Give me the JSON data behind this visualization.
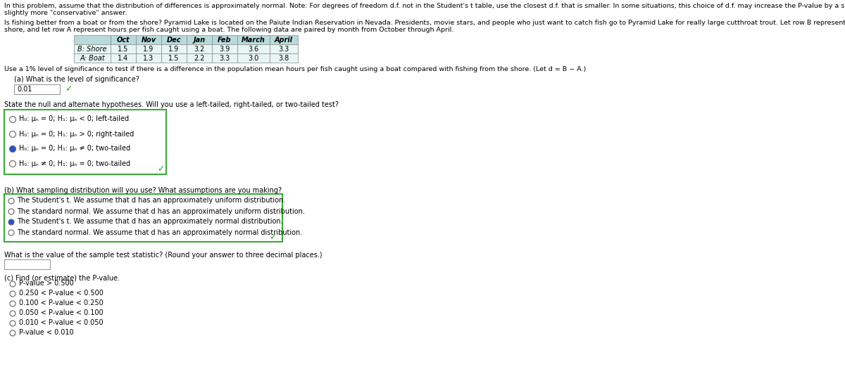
{
  "header_line1": "In this problem, assume that the distribution of differences is approximately normal. Note: For degrees of freedom d.f. not in the Student's t table, use the closest d.f. that is smaller. In some situations, this choice of d.f. may increase the P-value by a small amount and therefore produce a",
  "header_line2": "slightly more \"conservative\" answer.",
  "problem_line1": "Is fishing better from a boat or from the shore? Pyramid Lake is located on the Paiute Indian Reservation in Nevada. Presidents, movie stars, and people who just want to catch fish go to Pyramid Lake for really large cutthroat trout. Let row B represent hours per fish caught fishing from the",
  "problem_line2": "shore, and let row A represent hours per fish caught using a boat. The following data are paired by month from October through April.",
  "table_header": [
    "",
    "Oct",
    "Nov",
    "Dec",
    "Jan",
    "Feb",
    "March",
    "April"
  ],
  "table_row1_label": "B: Shore",
  "table_row1": [
    "1.5",
    "1.9",
    "1.9",
    "3.2",
    "3.9",
    "3.6",
    "3.3"
  ],
  "table_row2_label": "A: Boat",
  "table_row2": [
    "1.4",
    "1.3",
    "1.5",
    "2.2",
    "3.3",
    "3.0",
    "3.8"
  ],
  "significance_text": "Use a 1% level of significance to test if there is a difference in the population mean hours per fish caught using a boat compared with fishing from the shore. (Let d = B − A.)",
  "part_a_label": "(a) What is the level of significance?",
  "part_a_answer": "0.01",
  "hypotheses_label": "State the null and alternate hypotheses. Will you use a left-tailed, right-tailed, or two-tailed test?",
  "hyp_options": [
    "H₀: μₙ = 0; H₁: μₙ < 0; left-tailed",
    "H₀: μₙ = 0; H₁: μₙ > 0; right-tailed",
    "H₀: μₙ = 0; H₁: μₙ ≠ 0; two-tailed",
    "H₀: μₙ ≠ 0; H₁: μₙ = 0; two-tailed"
  ],
  "hyp_selected": 2,
  "part_b_label": "(b) What sampling distribution will you use? What assumptions are you making?",
  "dist_options": [
    "The Student's t. We assume that d has an approximately uniform distribution.",
    "The standard normal. We assume that d has an approximately uniform distribution.",
    "The Student's t. We assume that d has an approximately normal distribution.",
    "The standard normal. We assume that d has an approximately normal distribution."
  ],
  "dist_selected": 2,
  "test_stat_label": "What is the value of the sample test statistic? (Round your answer to three decimal places.)",
  "part_c_label": "(c) Find (or estimate) the P-value.",
  "pvalue_options": [
    "P-value > 0.500",
    "0.250 < P-value < 0.500",
    "0.100 < P-value < 0.250",
    "0.050 < P-value < 0.100",
    "0.010 < P-value < 0.050",
    "P-value < 0.010"
  ],
  "bg_color": "#ffffff",
  "text_color": "#000000",
  "table_header_bg": "#b8dada",
  "table_row_bg": "#e8f5f5",
  "table_label_bg": "#e8f5f5",
  "box_border_color": "#3aaa3a",
  "radio_fill_color": "#2255cc",
  "check_color": "#22aa22",
  "answer_box_color": "#cccccc",
  "font_size": 7.2,
  "small_font": 7.0,
  "header_font": 6.8
}
